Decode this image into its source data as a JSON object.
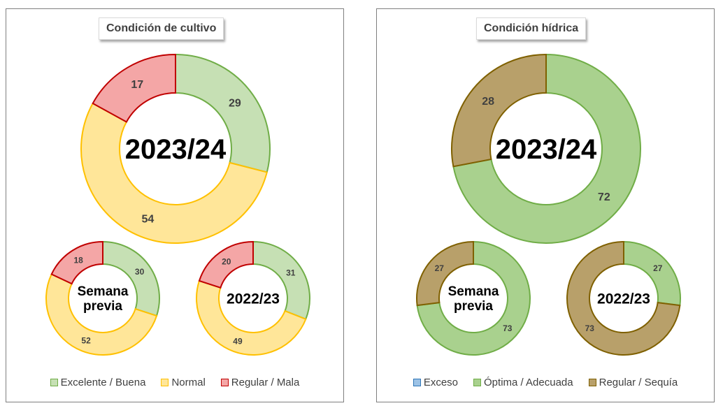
{
  "chart_data": [
    {
      "type": "pie",
      "title": "Condición de cultivo",
      "legend": [
        {
          "label": "Excelente / Buena",
          "fill": "#c6e0b4",
          "stroke": "#70ad47"
        },
        {
          "label": "Normal",
          "fill": "#ffe699",
          "stroke": "#ffc000"
        },
        {
          "label": "Regular / Mala",
          "fill": "#f4a6a6",
          "stroke": "#c00000"
        }
      ],
      "legend_position": "bottom",
      "donuts": [
        {
          "center_label": "2023/24",
          "values": [
            29,
            54,
            17
          ]
        },
        {
          "center_label": "Semana previa",
          "values": [
            30,
            52,
            18
          ]
        },
        {
          "center_label": "2022/23",
          "values": [
            31,
            49,
            20
          ]
        }
      ]
    },
    {
      "type": "pie",
      "title": "Condición hídrica",
      "legend": [
        {
          "label": "Exceso",
          "fill": "#9dc3e6",
          "stroke": "#2e75b6"
        },
        {
          "label": "Óptima / Adecuada",
          "fill": "#a9d18e",
          "stroke": "#70ad47"
        },
        {
          "label": "Regular / Sequía",
          "fill": "#b8a06a",
          "stroke": "#7f6000"
        }
      ],
      "legend_position": "bottom",
      "donuts": [
        {
          "center_label": "2023/24",
          "values": [
            0,
            72,
            28
          ]
        },
        {
          "center_label": "Semana previa",
          "values": [
            0,
            73,
            27
          ]
        },
        {
          "center_label": "2022/23",
          "values": [
            0,
            27,
            73
          ]
        }
      ]
    }
  ]
}
